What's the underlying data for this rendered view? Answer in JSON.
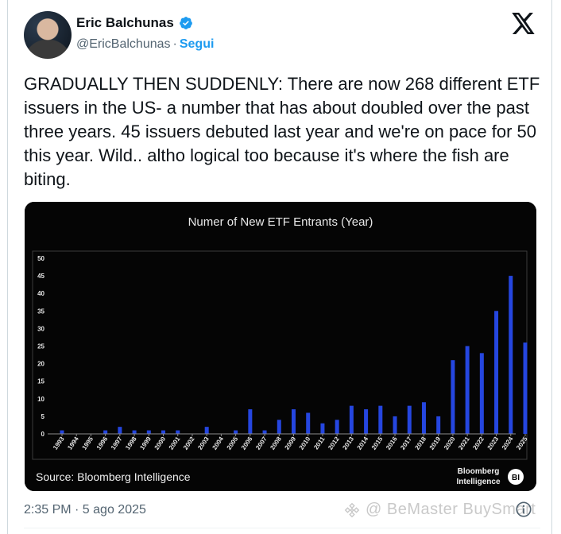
{
  "author": {
    "name": "Eric Balchunas",
    "handle": "@EricBalchunas",
    "separator": "·",
    "follow_label": "Segui"
  },
  "tweet": {
    "text": "GRADUALLY THEN SUDDENLY: There are now 268 different ETF issuers in the US- a number that has about doubled over the past three years. 45 issuers debuted last year and we're on pace for 50 this year. Wild.. altho logical too because it's where the fish are biting.",
    "timestamp": "2:35 PM · 5 ago 2025"
  },
  "watermark": {
    "text": "@ BeMaster BuySmart"
  },
  "colors": {
    "accent": "#1d9bf0",
    "bar": "#2546e0",
    "chart_bg": "#050505"
  },
  "icons": {
    "verified": "verified-badge-icon",
    "platform": "x-logo-icon",
    "info": "info-icon"
  },
  "chart_data": {
    "type": "bar",
    "title": "Numer of New ETF Entrants (Year)",
    "source": "Source: Bloomberg Intelligence",
    "brand_line1": "Bloomberg",
    "brand_line2": "Intelligence",
    "brand_badge": "BI",
    "ylim": [
      0,
      50
    ],
    "yticks": [
      0,
      5,
      10,
      15,
      20,
      25,
      30,
      35,
      40,
      45,
      50
    ],
    "categories": [
      "1993",
      "1994",
      "1995",
      "1996",
      "1997",
      "1998",
      "1999",
      "2000",
      "2001",
      "2002",
      "2003",
      "2004",
      "2005",
      "2006",
      "2007",
      "2008",
      "2009",
      "2010",
      "2011",
      "2012",
      "2013",
      "2014",
      "2015",
      "2016",
      "2017",
      "2018",
      "2019",
      "2020",
      "2021",
      "2022",
      "2023",
      "2024",
      "2025"
    ],
    "values": [
      1,
      0,
      0,
      1,
      2,
      1,
      1,
      1,
      1,
      0,
      2,
      0,
      1,
      7,
      1,
      4,
      7,
      6,
      3,
      4,
      8,
      7,
      8,
      5,
      8,
      9,
      5,
      21,
      25,
      23,
      35,
      45,
      26
    ]
  }
}
